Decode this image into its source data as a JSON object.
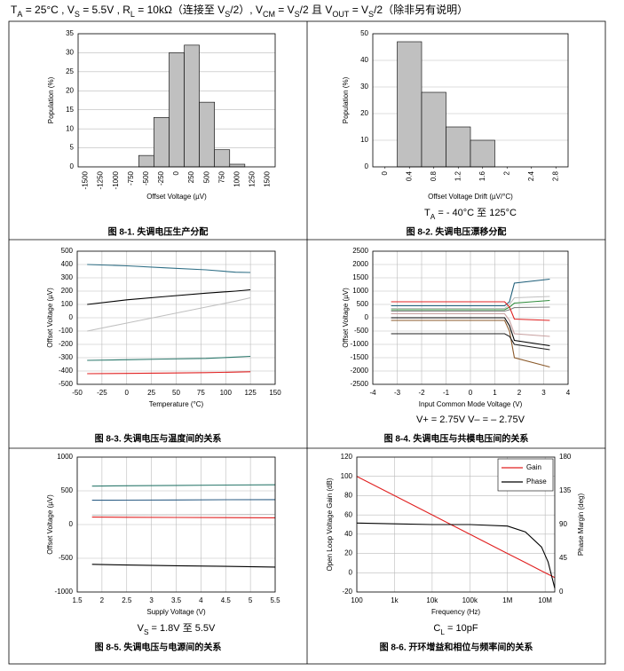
{
  "header": [
    "T",
    "A",
    " = 25°C , V",
    "S",
    " = 5.5V , R",
    "L",
    " = 10kΩ（连接至 V",
    "S",
    "/2）, V",
    "CM",
    " = V",
    "S",
    "/2 且 V",
    "OUT",
    " = V",
    "S",
    "/2（除非另有说明）"
  ],
  "chart_data": [
    {
      "type": "bar",
      "caption": "图 8-1. 失调电压生产分配",
      "xlabel": "Offset Voltage (µV)",
      "ylabel": "Population (%)",
      "categories": [
        "-1500",
        "-1250",
        "-1000",
        "-750",
        "-500",
        "-250",
        "0",
        "250",
        "500",
        "750",
        "1000",
        "1250",
        "1500"
      ],
      "values": [
        0,
        0,
        0,
        0,
        3,
        13,
        30,
        32,
        17,
        4.5,
        0.7,
        0,
        0
      ],
      "color": "#c0c0c0",
      "ylim": [
        0,
        35
      ],
      "yticks": [
        0,
        5,
        10,
        15,
        20,
        25,
        30,
        35
      ],
      "grid": true
    },
    {
      "type": "histogram",
      "caption": "图 8-2. 失调电压漂移分配",
      "xlabel": "Offset Voltage Drift (µV/°C)",
      "ylabel": "Population (%)",
      "annotation": [
        "T",
        "A",
        " = - 40°C 至 125°C"
      ],
      "bins": [
        0.2,
        0.6,
        1.0,
        1.4,
        1.8
      ],
      "counts": [
        47,
        28,
        15,
        10
      ],
      "color": "#c0c0c0",
      "xlim": [
        -0.2,
        3.0
      ],
      "xticks": [
        0,
        0.4,
        0.8,
        1.2,
        1.6,
        2,
        2.4,
        2.8
      ],
      "ylim": [
        0,
        50
      ],
      "yticks": [
        0,
        10,
        20,
        30,
        40,
        50
      ],
      "grid": true
    },
    {
      "type": "line",
      "caption": "图 8-3. 失调电压与温度间的关系",
      "xlabel": "Temperature (°C)",
      "ylabel": "Offset Voltage (µV)",
      "x": [
        -40,
        0,
        40,
        80,
        110,
        125
      ],
      "series": [
        {
          "color": "#2f6f86",
          "values": [
            400,
            390,
            375,
            360,
            342,
            340
          ]
        },
        {
          "color": "#000000",
          "values": [
            100,
            135,
            160,
            185,
            200,
            210
          ]
        },
        {
          "color": "#c0c0c0",
          "values": [
            -100,
            -40,
            20,
            80,
            125,
            150
          ]
        },
        {
          "color": "#2e7a6e",
          "values": [
            -320,
            -315,
            -310,
            -305,
            -295,
            -290
          ]
        },
        {
          "color": "#e02020",
          "values": [
            -420,
            -418,
            -415,
            -412,
            -408,
            -405
          ]
        }
      ],
      "xlim": [
        -50,
        150
      ],
      "xticks": [
        -50,
        -25,
        0,
        25,
        50,
        75,
        100,
        125,
        150
      ],
      "ylim": [
        -500,
        500
      ],
      "yticks": [
        -500,
        -400,
        -300,
        -200,
        -100,
        0,
        100,
        200,
        300,
        400,
        500
      ],
      "grid": true,
      "xgrid": true
    },
    {
      "type": "line",
      "caption": "图 8-4. 失调电压与共模电压间的关系",
      "xlabel": "Input Common Mode Voltage (V)",
      "ylabel": "Offset Voltage (µV)",
      "annotation": [
        "V+ = 2.75V        V– = – 2.75V"
      ],
      "x": [
        -3.25,
        1.4,
        1.6,
        1.8,
        3.25
      ],
      "series": [
        {
          "color": "#1f5f7a",
          "values": [
            450,
            450,
            600,
            1300,
            1450
          ]
        },
        {
          "color": "#c0c0c0",
          "values": [
            350,
            350,
            500,
            750,
            800
          ]
        },
        {
          "color": "#2e8b3a",
          "values": [
            300,
            300,
            400,
            550,
            650
          ]
        },
        {
          "color": "#808080",
          "values": [
            250,
            250,
            300,
            380,
            400
          ]
        },
        {
          "color": "#e02020",
          "values": [
            600,
            600,
            400,
            -50,
            -100
          ]
        },
        {
          "color": "#c8a0a0",
          "values": [
            150,
            150,
            -100,
            -600,
            -700
          ]
        },
        {
          "color": "#000000",
          "values": [
            0,
            0,
            -300,
            -850,
            -1050
          ]
        },
        {
          "color": "#8b5a2b",
          "values": [
            -100,
            -100,
            -500,
            -1500,
            -1850
          ]
        },
        {
          "color": "#202020",
          "values": [
            -600,
            -600,
            -700,
            -1000,
            -1200
          ]
        }
      ],
      "xlim": [
        -4,
        4
      ],
      "xticks": [
        -4,
        -3,
        -2,
        -1,
        0,
        1,
        2,
        3,
        4
      ],
      "ylim": [
        -2500,
        2500
      ],
      "yticks": [
        -2500,
        -2000,
        -1500,
        -1000,
        -500,
        0,
        500,
        1000,
        1500,
        2000,
        2500
      ],
      "grid": true,
      "xgrid": true
    },
    {
      "type": "line",
      "caption": "图 8-5. 失调电压与电源间的关系",
      "xlabel": "Supply Voltage (V)",
      "ylabel": "Offset Voltage (µV)",
      "annotation": [
        "V",
        "S",
        " = 1.8V 至 5.5V"
      ],
      "x": [
        1.8,
        2.5,
        3.5,
        4.5,
        5.5
      ],
      "series": [
        {
          "color": "#2e7a6e",
          "values": [
            570,
            575,
            580,
            585,
            590
          ]
        },
        {
          "color": "#2f5f86",
          "values": [
            360,
            362,
            365,
            368,
            370
          ]
        },
        {
          "color": "#c0c0c0",
          "values": [
            140,
            142,
            145,
            148,
            150
          ]
        },
        {
          "color": "#e02020",
          "values": [
            110,
            108,
            105,
            102,
            100
          ]
        },
        {
          "color": "#000000",
          "values": [
            -590,
            -600,
            -610,
            -620,
            -630
          ]
        }
      ],
      "xlim": [
        1.5,
        5.5
      ],
      "xticks": [
        1.5,
        2,
        2.5,
        3,
        3.5,
        4,
        4.5,
        5,
        5.5
      ],
      "ylim": [
        -1000,
        1000
      ],
      "yticks": [
        -1000,
        -500,
        0,
        500,
        1000
      ],
      "grid": true,
      "xgrid": true
    },
    {
      "type": "line",
      "caption": "图 8-6. 开环增益和相位与频率间的关系",
      "xlabel": "Frequency (Hz)",
      "ylabel": "Open Loop Voltage Gain (dB)",
      "y2label": "Phase Margin (deg)",
      "annotation": [
        "C",
        "L",
        " = 10pF"
      ],
      "x": [
        100,
        1000,
        10000,
        100000,
        1000000,
        3000000,
        8000000,
        12000000,
        18000000
      ],
      "series": [
        {
          "name": "Gain",
          "color": "#e02020",
          "values": [
            100,
            80,
            60,
            40,
            20,
            10.5,
            1.9,
            -1.6,
            -5.1
          ]
        },
        {
          "name": "Phase",
          "color": "#000000",
          "axis": "y2",
          "values": [
            92,
            91,
            90,
            90,
            88,
            80,
            60,
            40,
            5
          ]
        }
      ],
      "xlog": true,
      "xlim": [
        100,
        18000000
      ],
      "xticks": [
        100,
        {
          "value": 1000,
          "label": "1k"
        },
        {
          "value": 10000,
          "label": "10k"
        },
        {
          "value": 100000,
          "label": "100k"
        },
        {
          "value": 1000000,
          "label": "1M"
        },
        {
          "value": 10000000,
          "label": "10M"
        }
      ],
      "ylim": [
        -20,
        120
      ],
      "yticks": [
        -20,
        0,
        20,
        40,
        60,
        80,
        100,
        120
      ],
      "y2lim": [
        0,
        180
      ],
      "y2ticks": [
        0,
        45,
        90,
        135,
        180
      ],
      "grid": true,
      "xgrid": true,
      "legend": "upper right"
    }
  ]
}
